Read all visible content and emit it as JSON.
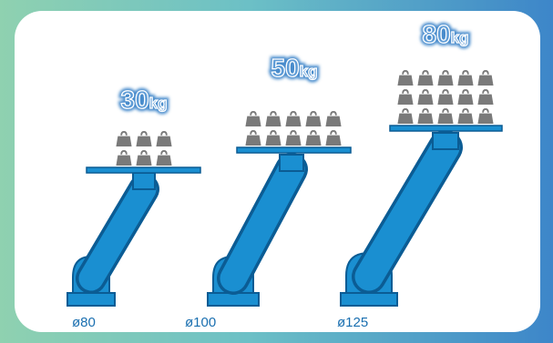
{
  "payloads": [
    {
      "number": "30",
      "unit": "kg",
      "weight_rows": [
        3,
        3
      ],
      "diameter": "ø80"
    },
    {
      "number": "50",
      "unit": "kg",
      "weight_rows": [
        5,
        5
      ],
      "diameter": "ø100"
    },
    {
      "number": "80",
      "unit": "kg",
      "weight_rows": [
        5,
        5,
        5
      ],
      "diameter": "ø125"
    }
  ],
  "colors": {
    "arm_blue": "#1a8fd1",
    "arm_dark": "#0b5c94",
    "weight_gray": "#7a7a7a",
    "label_fill": "#5d9bd6",
    "label_stroke": "#ffffff",
    "label_glow": "#4a8ccc"
  },
  "icons": {
    "weight": "weight-icon",
    "arm": "robot-arm-icon"
  }
}
